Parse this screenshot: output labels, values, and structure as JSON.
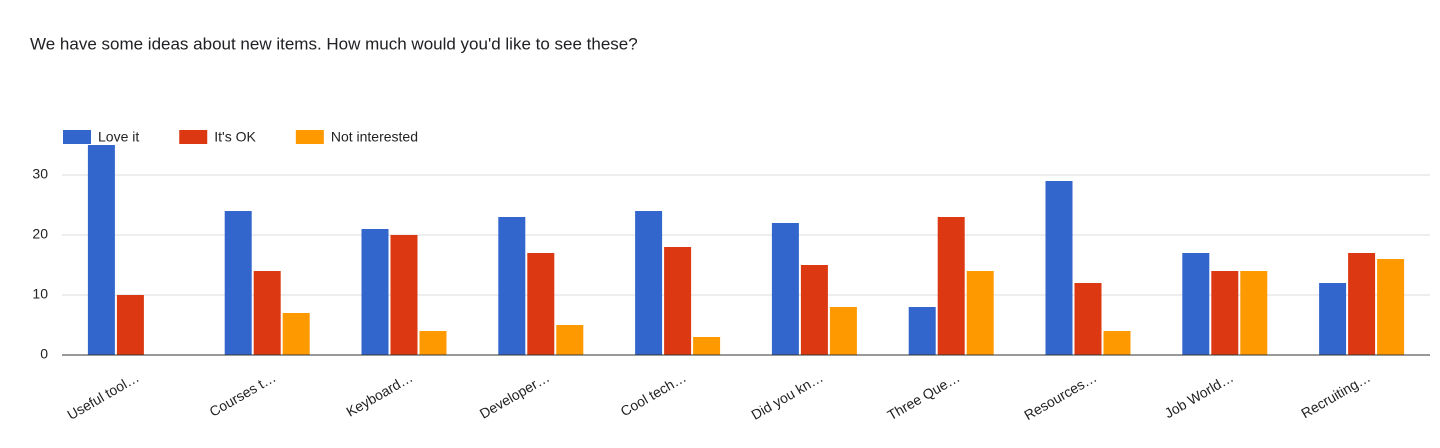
{
  "chart_data": {
    "type": "bar",
    "title": "We have some ideas about new items. How much would you'd like to see these?",
    "categories": [
      "Useful tool…",
      "Courses t…",
      "Keyboard…",
      "Developer…",
      "Cool tech…",
      "Did you kn…",
      "Three Que…",
      "Resources…",
      "Job World…",
      "Recruiting…"
    ],
    "series": [
      {
        "name": "Love it",
        "color": "#3366cc",
        "values": [
          35,
          24,
          21,
          23,
          24,
          22,
          8,
          29,
          17,
          12
        ]
      },
      {
        "name": "It's OK",
        "color": "#dc3912",
        "values": [
          10,
          14,
          20,
          17,
          18,
          15,
          23,
          12,
          14,
          17
        ]
      },
      {
        "name": "Not interested",
        "color": "#ff9900",
        "values": [
          0,
          7,
          4,
          5,
          3,
          8,
          14,
          4,
          14,
          16
        ]
      }
    ],
    "ylim": [
      0,
      35
    ],
    "yticks": [
      0,
      10,
      20,
      30
    ],
    "grid": true,
    "legend": "top"
  }
}
